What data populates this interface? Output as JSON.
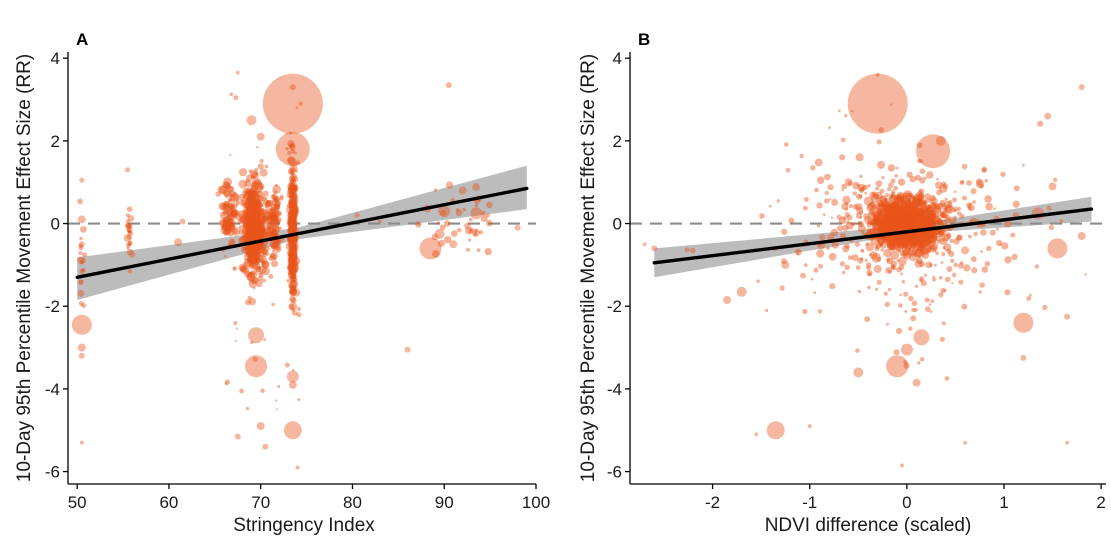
{
  "colors": {
    "points": "#e8541a",
    "fit_line": "#000000",
    "confidence_band": "#a6a6a6",
    "reference_line": "#8c8c8c",
    "axis": "#000000"
  },
  "chart_data": [
    {
      "panel": "A",
      "type": "scatter",
      "title": "",
      "xlabel": "Stringency Index",
      "ylabel": "10-Day 95th Percentile Movement Effect Size (RR)",
      "xlim": [
        49,
        100
      ],
      "ylim": [
        -6.3,
        4.15
      ],
      "xticks": [
        "50",
        "60",
        "70",
        "80",
        "90",
        "100"
      ],
      "yticks": [
        "-6",
        "-4",
        "-2",
        "0",
        "2",
        "4"
      ],
      "reference_line_y": 0,
      "fit_line": {
        "x": [
          50,
          99
        ],
        "y": [
          -1.3,
          0.85
        ]
      },
      "confidence_band": {
        "x": [
          50,
          74,
          99
        ],
        "lower": [
          -1.85,
          -0.38,
          0.35
        ],
        "upper": [
          -0.82,
          -0.1,
          1.4
        ]
      },
      "points": [
        {
          "x": 73.5,
          "y": 2.9,
          "size": 30
        },
        {
          "x": 73.5,
          "y": 1.8,
          "size": 17
        },
        {
          "x": 69.5,
          "y": -3.45,
          "size": 11
        },
        {
          "x": 69.5,
          "y": -2.7,
          "size": 8
        },
        {
          "x": 73.5,
          "y": -5.0,
          "size": 9
        },
        {
          "x": 50.5,
          "y": -2.45,
          "size": 10
        },
        {
          "x": 88.5,
          "y": -0.6,
          "size": 11
        },
        {
          "x": 90,
          "y": 0.3,
          "size": 6
        },
        {
          "x": 89.5,
          "y": -0.25,
          "size": 5
        },
        {
          "x": 93.5,
          "y": 0.25,
          "size": 6
        },
        {
          "x": 92,
          "y": 0.8,
          "size": 4
        },
        {
          "x": 90.5,
          "y": 3.35,
          "size": 3
        },
        {
          "x": 91,
          "y": -0.5,
          "size": 4
        },
        {
          "x": 73.5,
          "y": -3.7,
          "size": 6
        },
        {
          "x": 73.5,
          "y": -3.9,
          "size": 4
        },
        {
          "x": 70,
          "y": -4.9,
          "size": 4
        },
        {
          "x": 73.5,
          "y": 3.3,
          "size": 3
        },
        {
          "x": 69,
          "y": 2.5,
          "size": 5
        },
        {
          "x": 70,
          "y": 2.1,
          "size": 4
        },
        {
          "x": 50.5,
          "y": 0.1,
          "size": 4
        },
        {
          "x": 50.5,
          "y": -0.5,
          "size": 3
        },
        {
          "x": 50.5,
          "y": -3.0,
          "size": 4
        },
        {
          "x": 50.5,
          "y": -3.2,
          "size": 3
        },
        {
          "x": 50.5,
          "y": 1.05,
          "size": 2.5
        },
        {
          "x": 50.5,
          "y": -5.3,
          "size": 2
        },
        {
          "x": 55.5,
          "y": 1.3,
          "size": 2.5
        },
        {
          "x": 55.5,
          "y": -0.35,
          "size": 4
        },
        {
          "x": 56,
          "y": -0.75,
          "size": 3
        },
        {
          "x": 61,
          "y": -0.45,
          "size": 4
        },
        {
          "x": 61.5,
          "y": 0.05,
          "size": 3
        },
        {
          "x": 66,
          "y": 0.4,
          "size": 4
        },
        {
          "x": 66.5,
          "y": -0.2,
          "size": 3
        },
        {
          "x": 67.5,
          "y": -5.15,
          "size": 3
        },
        {
          "x": 70.5,
          "y": -5.4,
          "size": 3
        },
        {
          "x": 74,
          "y": -5.9,
          "size": 2
        },
        {
          "x": 67.5,
          "y": 3.65,
          "size": 2
        },
        {
          "x": 86,
          "y": -3.05,
          "size": 3
        },
        {
          "x": 80.5,
          "y": 0.2,
          "size": 2.5
        },
        {
          "x": 83,
          "y": 0.05,
          "size": 2
        },
        {
          "x": 98,
          "y": -0.1,
          "size": 3
        }
      ]
    },
    {
      "panel": "B",
      "type": "scatter",
      "title": "",
      "xlabel": "NDVI difference (scaled)",
      "ylabel": "10-Day 95th Percentile Movement Effect Size (RR)",
      "xlim": [
        -2.85,
        2.05
      ],
      "ylim": [
        -6.3,
        4.15
      ],
      "xticks": [
        "-2",
        "-1",
        "0",
        "1",
        "2"
      ],
      "yticks": [
        "-6",
        "-4",
        "-2",
        "0",
        "2",
        "4"
      ],
      "reference_line_y": 0,
      "fit_line": {
        "x": [
          -2.6,
          1.9
        ],
        "y": [
          -0.95,
          0.35
        ]
      },
      "confidence_band": {
        "x": [
          -2.6,
          0,
          1.9
        ],
        "lower": [
          -1.3,
          -0.25,
          0.05
        ],
        "upper": [
          -0.6,
          -0.05,
          0.65
        ]
      },
      "points": [
        {
          "x": -0.3,
          "y": 2.9,
          "size": 30
        },
        {
          "x": 0.27,
          "y": 1.75,
          "size": 17
        },
        {
          "x": -0.1,
          "y": -3.45,
          "size": 11
        },
        {
          "x": 0.15,
          "y": -2.75,
          "size": 8
        },
        {
          "x": -1.35,
          "y": -5.0,
          "size": 9
        },
        {
          "x": 1.2,
          "y": -2.4,
          "size": 10
        },
        {
          "x": 1.55,
          "y": -0.6,
          "size": 10
        },
        {
          "x": 1.35,
          "y": 0.25,
          "size": 6
        },
        {
          "x": 0.0,
          "y": -3.05,
          "size": 6
        },
        {
          "x": 0.1,
          "y": -3.85,
          "size": 4
        },
        {
          "x": -0.5,
          "y": -3.6,
          "size": 5
        },
        {
          "x": -1.85,
          "y": -1.85,
          "size": 4
        },
        {
          "x": -1.7,
          "y": -1.65,
          "size": 5
        },
        {
          "x": -1.25,
          "y": -1.0,
          "size": 4
        },
        {
          "x": 1.8,
          "y": 3.3,
          "size": 3
        },
        {
          "x": 1.45,
          "y": 2.6,
          "size": 3.5
        },
        {
          "x": 1.2,
          "y": -3.25,
          "size": 3
        },
        {
          "x": 1.65,
          "y": -2.25,
          "size": 3
        },
        {
          "x": 1.65,
          "y": -5.3,
          "size": 2
        },
        {
          "x": -2.6,
          "y": -0.6,
          "size": 3
        },
        {
          "x": 1.8,
          "y": -0.3,
          "size": 4
        },
        {
          "x": 1.5,
          "y": 0.9,
          "size": 4
        },
        {
          "x": 0.35,
          "y": 2.0,
          "size": 5
        },
        {
          "x": 0.6,
          "y": -0.65,
          "size": 4
        },
        {
          "x": -0.6,
          "y": 1.0,
          "size": 4
        },
        {
          "x": -0.3,
          "y": -1.1,
          "size": 4
        },
        {
          "x": -2.7,
          "y": -0.5,
          "size": 2
        },
        {
          "x": -1.55,
          "y": -5.1,
          "size": 2
        },
        {
          "x": 0.6,
          "y": -5.3,
          "size": 2
        },
        {
          "x": -0.05,
          "y": -5.85,
          "size": 2
        },
        {
          "x": -1.0,
          "y": -4.9,
          "size": 2
        },
        {
          "x": -0.3,
          "y": 3.6,
          "size": 2
        }
      ]
    }
  ]
}
